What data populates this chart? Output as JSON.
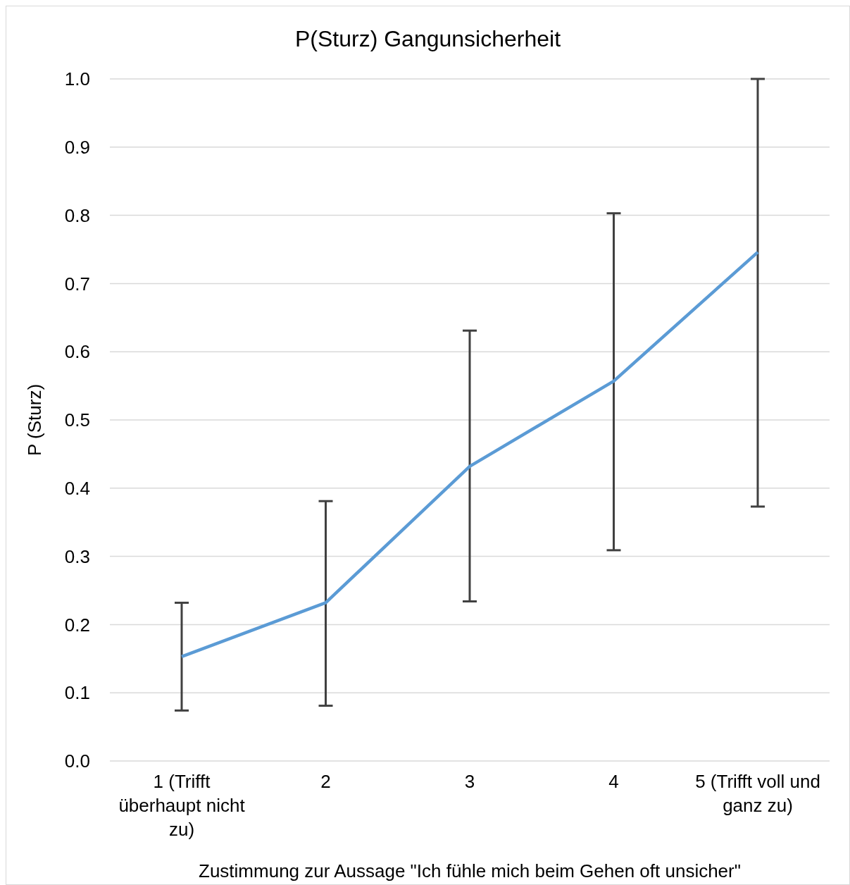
{
  "chart_data": {
    "type": "line",
    "title": "P(Sturz) Gangunsicherheit",
    "xlabel": "Zustimmung zur Aussage \"Ich fühle mich beim Gehen oft unsicher\"",
    "ylabel": "P (Sturz)",
    "categories": [
      "1 (Trifft überhaupt nicht zu)",
      "2",
      "3",
      "4",
      "5 (Trifft voll und ganz zu)"
    ],
    "series": [
      {
        "color": "#5b9bd5",
        "values": [
          0.153,
          0.232,
          0.432,
          0.557,
          0.746
        ],
        "errors": [
          [
            0.074,
            0.232
          ],
          [
            0.081,
            0.381
          ],
          [
            0.234,
            0.631
          ],
          [
            0.309,
            0.803
          ],
          [
            0.373,
            1.0
          ]
        ]
      }
    ],
    "ylim": [
      0,
      1
    ],
    "yticks": [
      {
        "value": 0,
        "label": "0.0"
      },
      0.1,
      0.2,
      0.3,
      0.4,
      0.5,
      0.6,
      0.7,
      0.8,
      0.9,
      {
        "value": 1,
        "label": "1.0"
      }
    ],
    "grid": "y",
    "marker": "none",
    "line_style": "solid"
  }
}
